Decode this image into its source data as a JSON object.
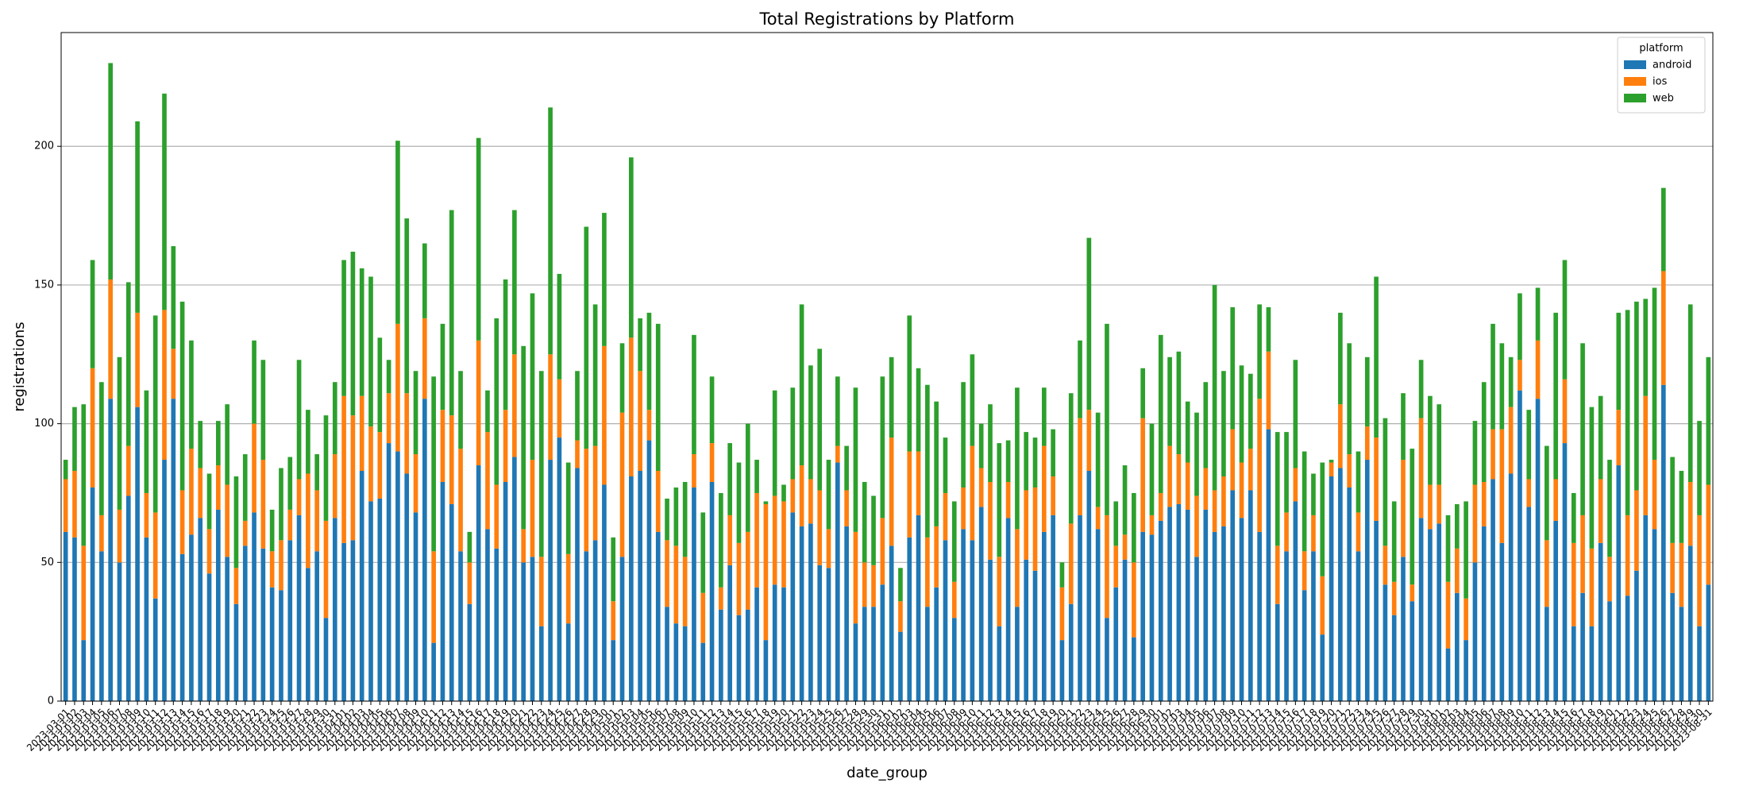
{
  "chart_data": {
    "type": "stacked_bar",
    "title": "Total Registrations by Platform",
    "xlabel": "date_group",
    "ylabel": "registrations",
    "legend_title": "platform",
    "legend": "upper right",
    "grid": true,
    "ylim": [
      0,
      241
    ],
    "yticks": [
      0,
      50,
      100,
      150,
      200
    ],
    "categories": [
      "2023-03-01",
      "2023-03-02",
      "2023-03-03",
      "2023-03-04",
      "2023-03-05",
      "2023-03-06",
      "2023-03-07",
      "2023-03-08",
      "2023-03-09",
      "2023-03-10",
      "2023-03-11",
      "2023-03-12",
      "2023-03-13",
      "2023-03-14",
      "2023-03-15",
      "2023-03-16",
      "2023-03-17",
      "2023-03-18",
      "2023-03-19",
      "2023-03-20",
      "2023-03-21",
      "2023-03-22",
      "2023-03-23",
      "2023-03-24",
      "2023-03-25",
      "2023-03-26",
      "2023-03-27",
      "2023-03-28",
      "2023-03-29",
      "2023-03-30",
      "2023-03-31",
      "2023-04-01",
      "2023-04-02",
      "2023-04-03",
      "2023-04-04",
      "2023-04-05",
      "2023-04-06",
      "2023-04-07",
      "2023-04-08",
      "2023-04-09",
      "2023-04-10",
      "2023-04-11",
      "2023-04-12",
      "2023-04-13",
      "2023-04-14",
      "2023-04-15",
      "2023-04-16",
      "2023-04-17",
      "2023-04-18",
      "2023-04-19",
      "2023-04-20",
      "2023-04-21",
      "2023-04-22",
      "2023-04-23",
      "2023-04-24",
      "2023-04-25",
      "2023-04-26",
      "2023-04-27",
      "2023-04-28",
      "2023-04-29",
      "2023-04-30",
      "2023-05-01",
      "2023-05-02",
      "2023-05-03",
      "2023-05-04",
      "2023-05-05",
      "2023-05-06",
      "2023-05-07",
      "2023-05-08",
      "2023-05-09",
      "2023-05-10",
      "2023-05-11",
      "2023-05-12",
      "2023-05-13",
      "2023-05-14",
      "2023-05-15",
      "2023-05-16",
      "2023-05-17",
      "2023-05-18",
      "2023-05-19",
      "2023-05-20",
      "2023-05-21",
      "2023-05-22",
      "2023-05-23",
      "2023-05-24",
      "2023-05-25",
      "2023-05-26",
      "2023-05-27",
      "2023-05-28",
      "2023-05-29",
      "2023-05-30",
      "2023-05-31",
      "2023-06-01",
      "2023-06-02",
      "2023-06-03",
      "2023-06-04",
      "2023-06-05",
      "2023-06-06",
      "2023-06-07",
      "2023-06-08",
      "2023-06-09",
      "2023-06-10",
      "2023-06-11",
      "2023-06-12",
      "2023-06-13",
      "2023-06-14",
      "2023-06-15",
      "2023-06-16",
      "2023-06-17",
      "2023-06-18",
      "2023-06-19",
      "2023-06-20",
      "2023-06-21",
      "2023-06-22",
      "2023-06-23",
      "2023-06-24",
      "2023-06-25",
      "2023-06-26",
      "2023-06-27",
      "2023-06-28",
      "2023-06-29",
      "2023-06-30",
      "2023-07-01",
      "2023-07-02",
      "2023-07-03",
      "2023-07-04",
      "2023-07-05",
      "2023-07-06",
      "2023-07-07",
      "2023-07-08",
      "2023-07-09",
      "2023-07-10",
      "2023-07-11",
      "2023-07-12",
      "2023-07-13",
      "2023-07-14",
      "2023-07-15",
      "2023-07-16",
      "2023-07-17",
      "2023-07-18",
      "2023-07-19",
      "2023-07-20",
      "2023-07-21",
      "2023-07-22",
      "2023-07-23",
      "2023-07-24",
      "2023-07-25",
      "2023-07-26",
      "2023-07-27",
      "2023-07-28",
      "2023-07-29",
      "2023-07-30",
      "2023-07-31",
      "2023-08-01",
      "2023-08-02",
      "2023-08-03",
      "2023-08-04",
      "2023-08-05",
      "2023-08-06",
      "2023-08-07",
      "2023-08-08",
      "2023-08-09",
      "2023-08-10",
      "2023-08-11",
      "2023-08-12",
      "2023-08-13",
      "2023-08-14",
      "2023-08-15",
      "2023-08-16",
      "2023-08-17",
      "2023-08-18",
      "2023-08-19",
      "2023-08-20",
      "2023-08-21",
      "2023-08-22",
      "2023-08-23",
      "2023-08-24",
      "2023-08-25",
      "2023-08-26",
      "2023-08-27",
      "2023-08-28",
      "2023-08-29",
      "2023-08-30",
      "2023-08-31"
    ],
    "series": [
      {
        "name": "android",
        "color": "#1f77b4",
        "values": [
          61,
          59,
          22,
          77,
          54,
          109,
          50,
          74,
          106,
          59,
          37,
          87,
          109,
          53,
          60,
          66,
          46,
          69,
          52,
          35,
          56,
          68,
          55,
          41,
          40,
          58,
          67,
          48,
          54,
          30,
          66,
          57,
          58,
          83,
          72,
          73,
          93,
          90,
          82,
          68,
          109,
          21,
          79,
          71,
          54,
          35,
          85,
          62,
          55,
          79,
          88,
          50,
          52,
          27,
          87,
          95,
          28,
          84,
          54,
          58,
          78,
          22,
          52,
          81,
          83,
          94,
          61,
          34,
          28,
          27,
          77,
          21,
          79,
          33,
          49,
          31,
          33,
          41,
          22,
          42,
          41,
          68,
          63,
          64,
          49,
          48,
          86,
          63,
          28,
          34,
          34,
          42,
          56,
          25,
          59,
          67,
          34,
          41,
          58,
          30,
          62,
          58,
          70,
          51,
          27,
          66,
          34,
          51,
          47,
          61,
          67,
          22,
          35,
          67,
          83,
          62,
          30,
          41,
          51,
          23,
          61,
          60,
          65,
          70,
          71,
          69,
          52,
          69,
          61,
          63,
          76,
          66,
          76,
          61,
          98,
          35,
          54,
          72,
          40,
          54,
          24,
          81,
          84,
          77,
          54,
          87,
          65,
          42,
          31,
          52,
          36,
          66,
          62,
          64,
          19,
          39,
          22,
          50,
          63,
          80,
          57,
          82,
          112,
          70,
          109,
          34,
          65,
          93,
          27,
          39,
          27,
          57,
          36,
          85,
          38,
          47,
          67,
          62,
          114,
          39,
          34,
          56,
          27,
          42
        ]
      },
      {
        "name": "ios",
        "color": "#ff7f0e",
        "values": [
          19,
          24,
          34,
          43,
          13,
          43,
          19,
          18,
          34,
          16,
          31,
          54,
          18,
          23,
          31,
          18,
          16,
          16,
          26,
          13,
          9,
          32,
          32,
          13,
          18,
          11,
          13,
          34,
          22,
          35,
          23,
          53,
          45,
          27,
          27,
          24,
          18,
          46,
          29,
          21,
          29,
          33,
          26,
          32,
          37,
          15,
          45,
          35,
          23,
          26,
          37,
          12,
          35,
          25,
          38,
          21,
          25,
          10,
          37,
          34,
          50,
          14,
          52,
          50,
          36,
          11,
          22,
          24,
          28,
          25,
          12,
          18,
          14,
          8,
          18,
          26,
          28,
          34,
          49,
          32,
          31,
          12,
          22,
          16,
          27,
          14,
          6,
          13,
          33,
          16,
          15,
          24,
          39,
          11,
          31,
          23,
          25,
          22,
          17,
          13,
          15,
          34,
          14,
          28,
          25,
          13,
          28,
          25,
          30,
          31,
          14,
          19,
          29,
          35,
          22,
          8,
          37,
          15,
          9,
          27,
          41,
          7,
          10,
          22,
          18,
          17,
          22,
          15,
          15,
          18,
          22,
          20,
          15,
          48,
          28,
          21,
          14,
          12,
          14,
          13,
          21,
          5,
          23,
          12,
          14,
          12,
          30,
          14,
          12,
          35,
          6,
          36,
          16,
          14,
          24,
          16,
          15,
          28,
          16,
          18,
          41,
          24,
          11,
          10,
          21,
          24,
          15,
          23,
          30,
          28,
          28,
          23,
          16,
          20,
          29,
          29,
          43,
          25,
          41,
          18,
          23,
          23,
          40,
          36
        ]
      },
      {
        "name": "web",
        "color": "#2ca02c",
        "values": [
          7,
          23,
          51,
          39,
          48,
          78,
          55,
          59,
          69,
          37,
          71,
          78,
          37,
          68,
          39,
          17,
          20,
          16,
          29,
          33,
          24,
          30,
          36,
          15,
          26,
          19,
          43,
          23,
          13,
          38,
          26,
          49,
          59,
          46,
          54,
          34,
          12,
          66,
          63,
          30,
          27,
          63,
          31,
          74,
          28,
          11,
          73,
          15,
          60,
          47,
          52,
          66,
          60,
          67,
          89,
          38,
          33,
          25,
          80,
          51,
          48,
          23,
          25,
          65,
          19,
          35,
          53,
          15,
          21,
          27,
          43,
          29,
          24,
          34,
          26,
          29,
          39,
          12,
          1,
          38,
          6,
          33,
          58,
          41,
          51,
          25,
          25,
          16,
          52,
          29,
          25,
          51,
          29,
          12,
          49,
          30,
          55,
          45,
          20,
          29,
          38,
          33,
          16,
          28,
          41,
          15,
          51,
          21,
          18,
          21,
          17,
          9,
          47,
          28,
          62,
          34,
          69,
          16,
          25,
          25,
          18,
          33,
          57,
          32,
          37,
          22,
          30,
          31,
          74,
          38,
          44,
          35,
          27,
          34,
          16,
          41,
          29,
          39,
          36,
          15,
          41,
          1,
          33,
          40,
          22,
          25,
          58,
          46,
          29,
          24,
          49,
          21,
          32,
          29,
          24,
          16,
          35,
          23,
          36,
          38,
          31,
          18,
          24,
          25,
          19,
          34,
          60,
          43,
          18,
          62,
          51,
          30,
          35,
          35,
          74,
          68,
          35,
          62,
          30,
          31,
          26,
          64,
          34,
          46
        ]
      }
    ]
  }
}
